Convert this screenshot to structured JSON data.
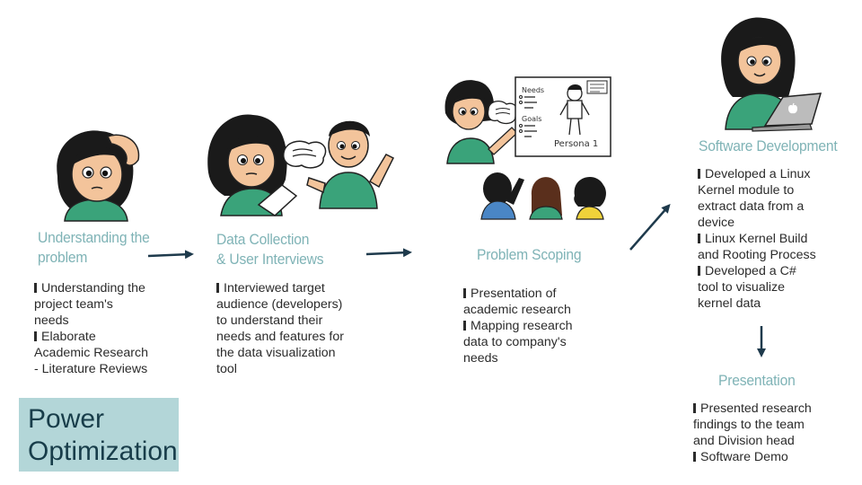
{
  "steps": [
    {
      "title": [
        "Understanding the",
        "problem"
      ],
      "bullets": [
        [
          "Understanding the",
          "project team's",
          "needs"
        ],
        [
          "Elaborate",
          "Academic Research",
          "- Literature Reviews"
        ]
      ]
    },
    {
      "title": [
        "Data Collection",
        "& User Interviews"
      ],
      "bullets": [
        [
          "Interviewed target",
          "audience (developers)",
          "to understand their",
          "needs and features for",
          "the data visualization",
          "tool"
        ]
      ]
    },
    {
      "title": [
        "Problem Scoping"
      ],
      "bullets": [
        [
          "Presentation of",
          "academic research"
        ],
        [
          "Mapping research",
          "data to company's",
          "needs"
        ]
      ]
    },
    {
      "title": [
        "Software Development"
      ],
      "bullets": [
        [
          "Developed a Linux",
          "Kernel module to",
          "extract data from a",
          "device"
        ],
        [
          "Linux Kernel Build",
          "and Rooting Process"
        ],
        [
          "Developed a C#",
          "tool to visualize",
          "kernel data"
        ]
      ]
    },
    {
      "title": [
        "Presentation"
      ],
      "bullets": [
        [
          "Presented research",
          "findings to the team",
          "and Division head"
        ],
        [
          "Software Demo"
        ]
      ]
    }
  ],
  "badge": {
    "line1": "Power",
    "line2": "Optimization"
  },
  "persona_sheet": {
    "needs": "Needs",
    "goals": "Goals",
    "persona": "Persona 1"
  },
  "colors": {
    "title": "#7fb3b6",
    "badge_bg": "#b3d6d8",
    "badge_text": "#183d4a",
    "arrow": "#1e3a4c",
    "shirt": "#3aa37a",
    "hair": "#1a1a1a",
    "skin": "#f3c49b"
  },
  "icons": [
    "thinking-woman-icon",
    "interview-icon",
    "presenter-icon",
    "audience-icon",
    "laptop-woman-icon",
    "apple-logo-icon"
  ]
}
